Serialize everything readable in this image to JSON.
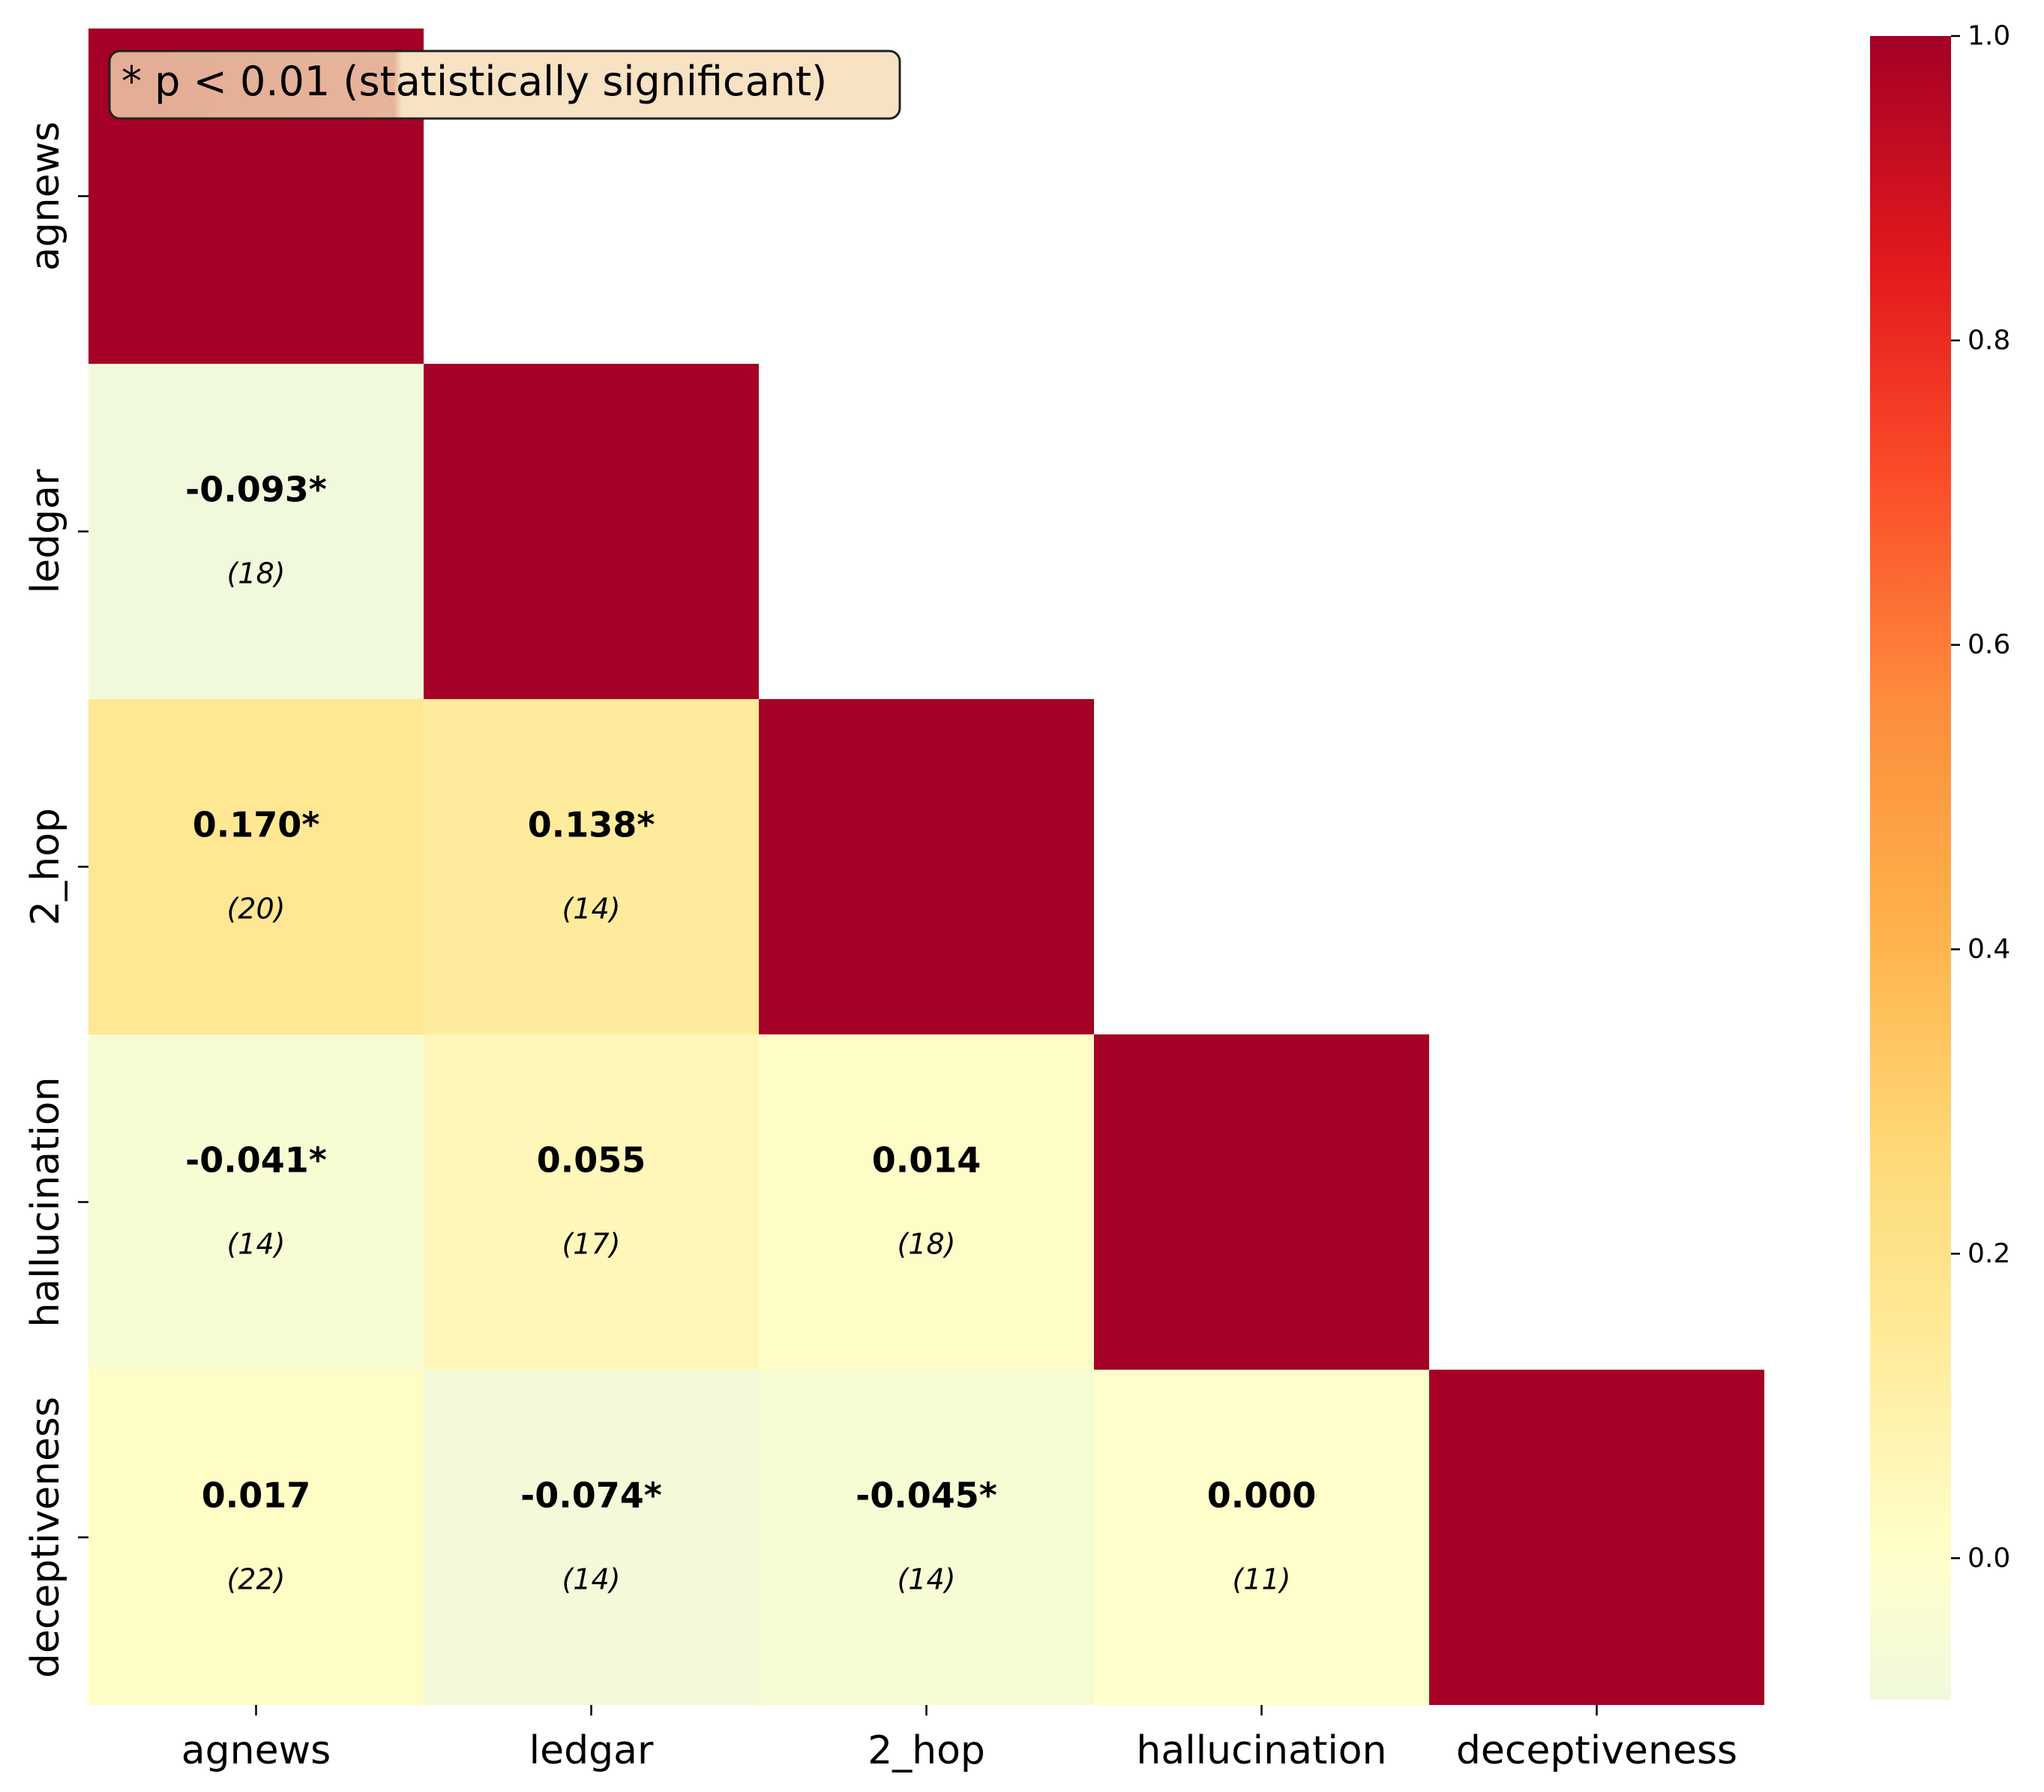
{
  "chart_data": {
    "type": "heatmap",
    "title": "",
    "xlabel": "",
    "ylabel": "",
    "mask": "upper-triangle",
    "colormap": "YlOrRd",
    "x_categories": [
      "agnews",
      "ledgar",
      "2_hop",
      "hallucination",
      "deceptiveness"
    ],
    "y_categories": [
      "agnews",
      "ledgar",
      "2_hop",
      "hallucination",
      "deceptiveness"
    ],
    "cells": [
      {
        "row": 0,
        "col": 0,
        "value": 1.0
      },
      {
        "row": 1,
        "col": 0,
        "value": -0.093,
        "label": "-0.093*",
        "count": "(18)"
      },
      {
        "row": 1,
        "col": 1,
        "value": 1.0
      },
      {
        "row": 2,
        "col": 0,
        "value": 0.17,
        "label": "0.170*",
        "count": "(20)"
      },
      {
        "row": 2,
        "col": 1,
        "value": 0.138,
        "label": "0.138*",
        "count": "(14)"
      },
      {
        "row": 2,
        "col": 2,
        "value": 1.0
      },
      {
        "row": 3,
        "col": 0,
        "value": -0.041,
        "label": "-0.041*",
        "count": "(14)"
      },
      {
        "row": 3,
        "col": 1,
        "value": 0.055,
        "label": "0.055",
        "count": "(17)"
      },
      {
        "row": 3,
        "col": 2,
        "value": 0.014,
        "label": "0.014",
        "count": "(18)"
      },
      {
        "row": 3,
        "col": 3,
        "value": 1.0
      },
      {
        "row": 4,
        "col": 0,
        "value": 0.017,
        "label": "0.017",
        "count": "(22)"
      },
      {
        "row": 4,
        "col": 1,
        "value": -0.074,
        "label": "-0.074*",
        "count": "(14)"
      },
      {
        "row": 4,
        "col": 2,
        "value": -0.045,
        "label": "-0.045*",
        "count": "(14)"
      },
      {
        "row": 4,
        "col": 3,
        "value": 0.0,
        "label": "0.000",
        "count": "(11)"
      },
      {
        "row": 4,
        "col": 4,
        "value": 1.0
      }
    ],
    "annotation": "* p < 0.01 (statistically significant)",
    "colorbar": {
      "range": [
        -0.093,
        1.0
      ],
      "ticks": [
        0.0,
        0.2,
        0.4,
        0.6,
        0.8,
        1.0
      ],
      "tick_labels": [
        "0.0",
        "0.2",
        "0.4",
        "0.6",
        "0.8",
        "1.0"
      ]
    }
  }
}
